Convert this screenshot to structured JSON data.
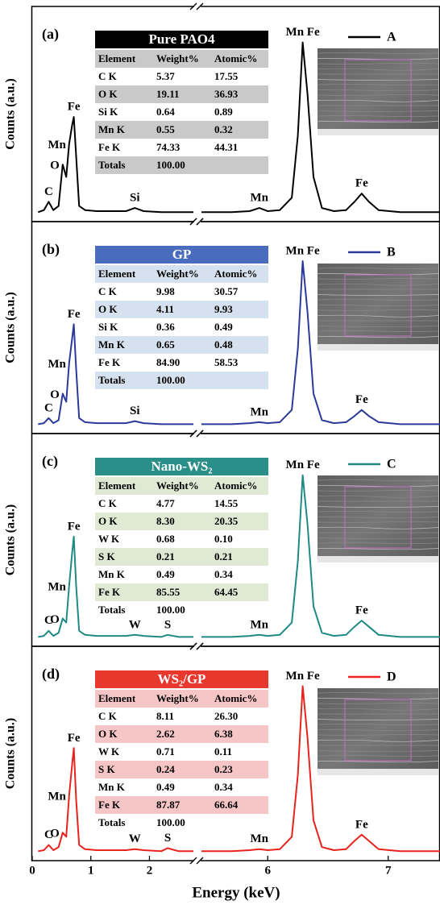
{
  "chart_data": [
    {
      "type": "line",
      "panel_label": "(a)",
      "ylabel": "Counts (a.u.)",
      "xlim": [
        [
          0,
          2.75
        ],
        [
          5.45,
          7.43
        ]
      ],
      "ylim": [
        0,
        100
      ],
      "x": [
        0.1,
        0.2,
        0.28,
        0.36,
        0.45,
        0.52,
        0.58,
        0.63,
        0.68,
        0.71,
        0.75,
        0.8,
        0.9,
        1.1,
        1.4,
        1.6,
        1.75,
        1.9,
        2.2,
        2.31,
        2.5,
        2.75,
        4,
        5.45,
        5.7,
        5.85,
        5.93,
        6.0,
        6.1,
        6.2,
        6.25,
        6.29,
        6.33,
        6.38,
        6.45,
        6.55,
        6.65,
        6.72,
        6.78,
        6.84,
        6.92,
        7.1,
        7.43
      ],
      "series": [
        {
          "name": "A",
          "color": "#000000",
          "values": [
            3,
            4,
            8,
            4,
            6,
            26,
            20,
            36,
            45,
            49,
            30,
            6,
            4,
            3.5,
            3.5,
            3.5,
            5,
            3.5,
            3,
            3,
            3,
            3,
            null,
            3,
            3,
            3.5,
            5,
            3.5,
            4,
            10,
            40,
            85,
            60,
            20,
            5,
            3.5,
            4,
            8,
            12,
            8,
            4,
            3,
            3
          ]
        }
      ],
      "annotations": [
        {
          "text": "C",
          "x": 0.28
        },
        {
          "text": "O",
          "x": 0.52
        },
        {
          "text": "Mn",
          "x": 0.63
        },
        {
          "text": "Fe",
          "x": 0.71
        },
        {
          "text": "Si",
          "x": 1.75
        },
        {
          "text": "Mn",
          "x": 5.93
        },
        {
          "text": "Mn Fe",
          "x": 6.29
        },
        {
          "text": "Fe",
          "x": 6.78
        }
      ],
      "table": {
        "title": "Pure PAO4",
        "header_color": "#000000",
        "stripe_color": "#c9c9c9",
        "columns": [
          "Element",
          "Weight%",
          "Atomic%"
        ],
        "rows": [
          [
            "C K",
            "5.37",
            "17.55"
          ],
          [
            "O K",
            "19.11",
            "36.93"
          ],
          [
            "Si K",
            "0.64",
            "0.89"
          ],
          [
            "Mn K",
            "0.55",
            "0.32"
          ],
          [
            "Fe K",
            "74.33",
            "44.31"
          ]
        ],
        "totals": [
          "Totals",
          "100.00"
        ]
      }
    },
    {
      "type": "line",
      "panel_label": "(b)",
      "ylabel": "Counts (a.u.)",
      "xlim": [
        [
          0,
          2.75
        ],
        [
          5.45,
          7.43
        ]
      ],
      "ylim": [
        0,
        100
      ],
      "x": [
        0.1,
        0.2,
        0.28,
        0.36,
        0.45,
        0.52,
        0.58,
        0.63,
        0.68,
        0.71,
        0.75,
        0.8,
        0.9,
        1.1,
        1.4,
        1.6,
        1.75,
        1.9,
        2.2,
        2.31,
        2.5,
        2.75,
        4,
        5.45,
        5.7,
        5.85,
        5.93,
        6.0,
        6.1,
        6.2,
        6.25,
        6.29,
        6.33,
        6.38,
        6.45,
        6.55,
        6.65,
        6.72,
        6.78,
        6.84,
        6.92,
        7.1,
        7.43
      ],
      "series": [
        {
          "name": "B",
          "color": "#2b3a9a",
          "values": [
            3,
            3.5,
            6,
            3.5,
            5,
            18,
            14,
            33,
            45,
            52,
            30,
            6,
            4,
            3.5,
            3.5,
            3.5,
            4.5,
            3.5,
            3,
            3,
            3,
            3,
            null,
            3,
            3,
            3.5,
            4,
            3.5,
            4,
            10,
            40,
            83,
            58,
            18,
            5,
            3.5,
            4,
            7,
            10,
            7,
            4,
            3,
            3
          ]
        }
      ],
      "annotations": [
        {
          "text": "C",
          "x": 0.28
        },
        {
          "text": "O",
          "x": 0.52
        },
        {
          "text": "Mn",
          "x": 0.63
        },
        {
          "text": "Fe",
          "x": 0.71
        },
        {
          "text": "Si",
          "x": 1.75
        },
        {
          "text": "Mn",
          "x": 5.93
        },
        {
          "text": "Mn Fe",
          "x": 6.29
        },
        {
          "text": "Fe",
          "x": 6.78
        }
      ],
      "table": {
        "title": "GP",
        "header_color": "#4a6cbf",
        "stripe_color": "#d6e1ef",
        "columns": [
          "Element",
          "Weight%",
          "Atomic%"
        ],
        "rows": [
          [
            "C K",
            "9.98",
            "30.57"
          ],
          [
            "O K",
            "4.11",
            "9.93"
          ],
          [
            "Si K",
            "0.36",
            "0.49"
          ],
          [
            "Mn K",
            "0.65",
            "0.48"
          ],
          [
            "Fe K",
            "84.90",
            "58.53"
          ]
        ],
        "totals": [
          "Totals",
          "100.00"
        ]
      }
    },
    {
      "type": "line",
      "panel_label": "(c)",
      "ylabel": "Counts (a.u.)",
      "xlim": [
        [
          0,
          2.75
        ],
        [
          5.45,
          7.43
        ]
      ],
      "ylim": [
        0,
        100
      ],
      "x": [
        0.1,
        0.2,
        0.28,
        0.36,
        0.45,
        0.52,
        0.58,
        0.63,
        0.68,
        0.71,
        0.75,
        0.8,
        0.9,
        1.1,
        1.4,
        1.6,
        1.75,
        1.9,
        2.2,
        2.31,
        2.5,
        2.75,
        4,
        5.45,
        5.7,
        5.85,
        5.93,
        6.0,
        6.1,
        6.2,
        6.25,
        6.29,
        6.33,
        6.38,
        6.45,
        6.55,
        6.65,
        6.72,
        6.78,
        6.84,
        6.92,
        7.1,
        7.43
      ],
      "series": [
        {
          "name": "C",
          "color": "#1e8a83",
          "values": [
            3,
            3.5,
            6,
            3.5,
            5,
            12,
            10,
            28,
            44,
            52,
            28,
            6,
            4,
            3.5,
            3.5,
            3.5,
            4,
            3.5,
            3,
            4,
            3,
            3,
            null,
            3,
            3,
            3.5,
            4,
            3.5,
            4,
            10,
            40,
            82,
            58,
            18,
            5,
            3.5,
            4,
            8,
            11,
            8,
            4,
            3,
            3
          ]
        }
      ],
      "annotations": [
        {
          "text": "C",
          "x": 0.28
        },
        {
          "text": "O",
          "x": 0.52
        },
        {
          "text": "Mn",
          "x": 0.63
        },
        {
          "text": "Fe",
          "x": 0.71
        },
        {
          "text": "W",
          "x": 1.75
        },
        {
          "text": "S",
          "x": 2.31
        },
        {
          "text": "Mn",
          "x": 5.93
        },
        {
          "text": "Mn Fe",
          "x": 6.29
        },
        {
          "text": "Fe",
          "x": 6.78
        }
      ],
      "table": {
        "title": "Nano-WS₂",
        "header_color": "#2a8f88",
        "stripe_color": "#dfe9d3",
        "columns": [
          "Element",
          "Weight%",
          "Atomic%"
        ],
        "rows": [
          [
            "C K",
            "4.77",
            "14.55"
          ],
          [
            "O K",
            "8.30",
            "20.35"
          ],
          [
            "W K",
            "0.68",
            "0.10"
          ],
          [
            "S K",
            "0.21",
            "0.21"
          ],
          [
            "Mn K",
            "0.49",
            "0.34"
          ],
          [
            "Fe K",
            "85.55",
            "64.45"
          ]
        ],
        "totals": [
          "Totals",
          "100.00"
        ]
      }
    },
    {
      "type": "line",
      "panel_label": "(d)",
      "ylabel": "Counts (a.u.)",
      "xlabel": "Energy (keV)",
      "xlim": [
        [
          0,
          2.75
        ],
        [
          5.45,
          7.43
        ]
      ],
      "ylim": [
        0,
        100
      ],
      "xticks": [
        0,
        1,
        2,
        6,
        7
      ],
      "x": [
        0.1,
        0.2,
        0.28,
        0.36,
        0.45,
        0.52,
        0.58,
        0.63,
        0.68,
        0.71,
        0.75,
        0.8,
        0.9,
        1.1,
        1.4,
        1.6,
        1.75,
        1.9,
        2.2,
        2.31,
        2.5,
        2.75,
        4,
        5.45,
        5.7,
        5.85,
        5.93,
        6.0,
        6.1,
        6.2,
        6.25,
        6.29,
        6.33,
        6.38,
        6.45,
        6.55,
        6.65,
        6.72,
        6.78,
        6.84,
        6.92,
        7.1,
        7.43
      ],
      "series": [
        {
          "name": "D",
          "color": "#e8231e",
          "values": [
            3,
            3.5,
            6,
            3.5,
            5,
            12,
            10,
            30,
            45,
            53,
            28,
            6,
            4,
            3.5,
            3.5,
            3.5,
            4,
            3.5,
            3,
            4.5,
            3,
            3,
            null,
            3,
            3,
            3.5,
            4,
            3.5,
            4,
            10,
            40,
            83,
            58,
            18,
            5,
            3.5,
            4,
            8,
            11,
            8,
            4,
            3,
            3
          ]
        }
      ],
      "annotations": [
        {
          "text": "C",
          "x": 0.28
        },
        {
          "text": "O",
          "x": 0.52
        },
        {
          "text": "Mn",
          "x": 0.63
        },
        {
          "text": "Fe",
          "x": 0.71
        },
        {
          "text": "W",
          "x": 1.75
        },
        {
          "text": "S",
          "x": 2.31
        },
        {
          "text": "Mn",
          "x": 5.93
        },
        {
          "text": "Mn Fe",
          "x": 6.29
        },
        {
          "text": "Fe",
          "x": 6.78
        }
      ],
      "table": {
        "title": "WS₂/GP",
        "header_color": "#e8372d",
        "stripe_color": "#f6c6c6",
        "columns": [
          "Element",
          "Weight%",
          "Atomic%"
        ],
        "rows": [
          [
            "C K",
            "8.11",
            "26.30"
          ],
          [
            "O K",
            "2.62",
            "6.38"
          ],
          [
            "W K",
            "0.71",
            "0.11"
          ],
          [
            "S K",
            "0.24",
            "0.23"
          ],
          [
            "Mn K",
            "0.49",
            "0.34"
          ],
          [
            "Fe K",
            "87.87",
            "66.64"
          ]
        ],
        "totals": [
          "Totals",
          "100.00"
        ]
      }
    }
  ]
}
